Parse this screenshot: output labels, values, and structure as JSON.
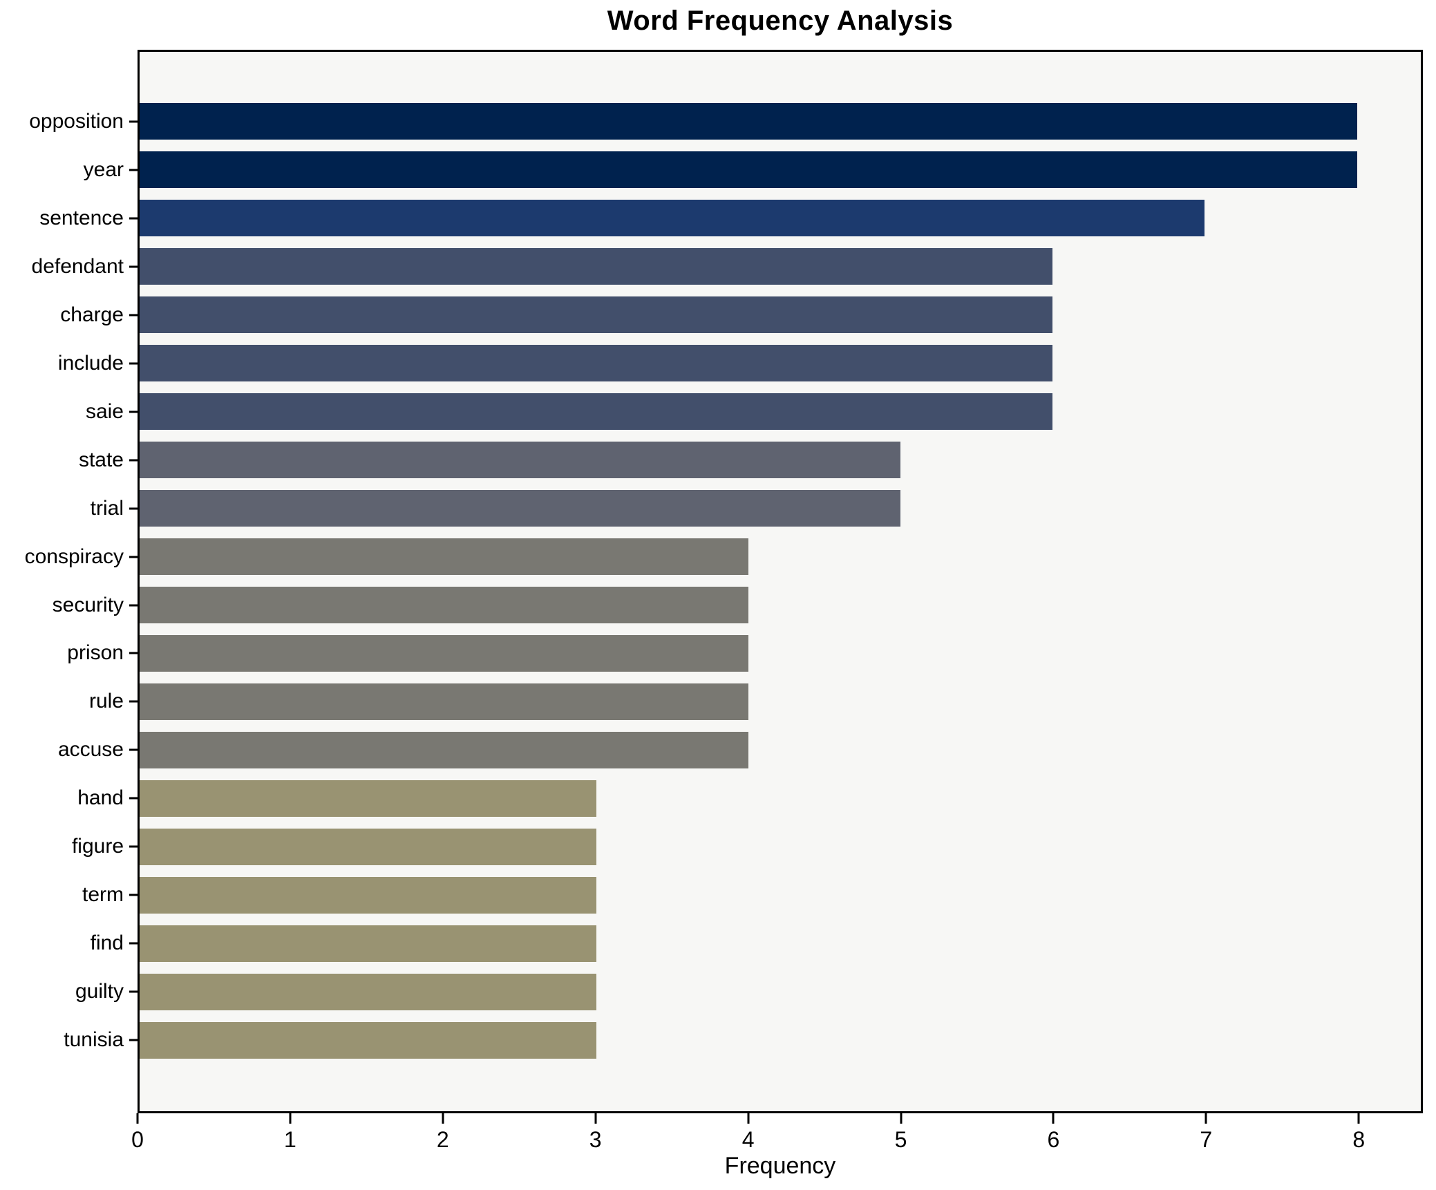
{
  "chart_data": {
    "type": "bar",
    "orientation": "horizontal",
    "title": "Word Frequency Analysis",
    "xlabel": "Frequency",
    "ylabel": "",
    "categories": [
      "opposition",
      "year",
      "sentence",
      "defendant",
      "charge",
      "include",
      "saie",
      "state",
      "trial",
      "conspiracy",
      "security",
      "prison",
      "rule",
      "accuse",
      "hand",
      "figure",
      "term",
      "find",
      "guilty",
      "tunisia"
    ],
    "values": [
      8,
      8,
      7,
      6,
      6,
      6,
      6,
      5,
      5,
      4,
      4,
      4,
      4,
      4,
      3,
      3,
      3,
      3,
      3,
      3
    ],
    "bar_colors": [
      "#00224e",
      "#00224e",
      "#1c3a6e",
      "#424f6b",
      "#424f6b",
      "#424f6b",
      "#424f6b",
      "#5f6370",
      "#5f6370",
      "#797872",
      "#797872",
      "#797872",
      "#797872",
      "#797872",
      "#999372",
      "#999372",
      "#999372",
      "#999372",
      "#999372",
      "#999372"
    ],
    "xticks": [
      0,
      1,
      2,
      3,
      4,
      5,
      6,
      7,
      8
    ],
    "xlim": [
      0,
      8.42
    ],
    "grid": false,
    "legend": "none",
    "plot_background": "#f7f7f5",
    "figure_background": "#ffffff",
    "spine_color": "#000000"
  }
}
